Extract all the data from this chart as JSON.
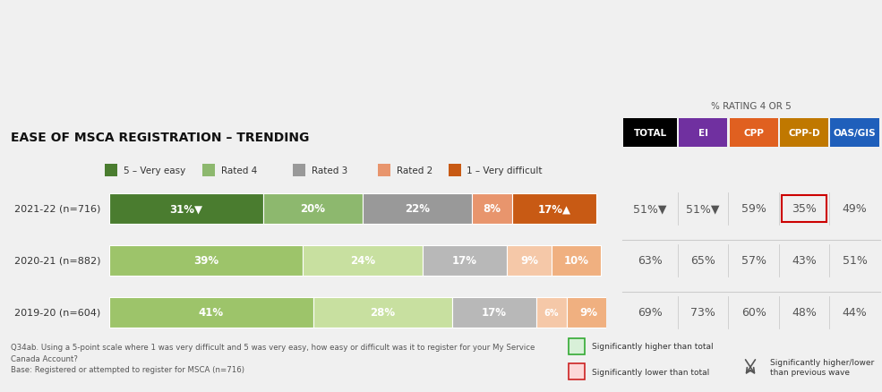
{
  "title": "EASE OF MSCA REGISTRATION – TRENDING",
  "title_fontsize": 10,
  "rows": [
    {
      "label": "2021-22 (n=716)",
      "values": [
        31,
        20,
        22,
        8,
        17
      ],
      "label_texts": [
        "31%▼",
        "20%",
        "22%",
        "8%",
        "17%▲"
      ],
      "total": "51%▼",
      "ei": "51%▼",
      "cpp": "59%",
      "cppd": "35%",
      "oasgis": "49%",
      "cppd_boxed": true,
      "row_bg": "#ebebeb"
    },
    {
      "label": "2020-21 (n=882)",
      "values": [
        39,
        24,
        17,
        9,
        10
      ],
      "label_texts": [
        "39%",
        "24%",
        "17%",
        "9%",
        "10%"
      ],
      "total": "63%",
      "ei": "65%",
      "cpp": "57%",
      "cppd": "43%",
      "oasgis": "51%",
      "cppd_boxed": false,
      "row_bg": "#ffffff"
    },
    {
      "label": "2019-20 (n=604)",
      "values": [
        41,
        28,
        17,
        6,
        9
      ],
      "label_texts": [
        "41%",
        "28%",
        "17%",
        "6%",
        "9%"
      ],
      "total": "69%",
      "ei": "73%",
      "cpp": "60%",
      "cppd": "48%",
      "oasgis": "44%",
      "cppd_boxed": false,
      "row_bg": "#ffffff"
    }
  ],
  "bar_colors_row0": [
    "#4a7c2f",
    "#8db86e",
    "#999999",
    "#e8956d",
    "#c85a14"
  ],
  "bar_colors_row1": [
    "#9dc46a",
    "#c8e0a0",
    "#b8b8b8",
    "#f5c8a8",
    "#f0b080"
  ],
  "bar_colors_row2": [
    "#9dc46a",
    "#c8e0a0",
    "#b8b8b8",
    "#f5c8a8",
    "#f0b080"
  ],
  "legend_items": [
    {
      "label": "5 – Very easy",
      "color": "#4a7c2f"
    },
    {
      "label": "Rated 4",
      "color": "#8db86e"
    },
    {
      "label": "Rated 3",
      "color": "#999999"
    },
    {
      "label": "Rated 2",
      "color": "#e8956d"
    },
    {
      "label": "1 – Very difficult",
      "color": "#c85a14"
    }
  ],
  "table_header_colors": {
    "TOTAL": "#000000",
    "EI": "#7030a0",
    "CPP": "#e06020",
    "CPP-D": "#c07800",
    "OAS/GIS": "#1f5fbb"
  },
  "table_headers": [
    "TOTAL",
    "EI",
    "CPP",
    "CPP-D",
    "OAS/GIS"
  ],
  "rating_label": "% RATING 4 OR 5",
  "footnote_q": "Q34ab. Using a 5-point scale where 1 was very difficult and 5 was very easy, how easy or difficult was it to register for your My Service\nCanada Account?\nBase: Registered or attempted to register for MSCA (n=716)",
  "footnote_sig_high": "Significantly higher than total",
  "footnote_sig_low": "Significantly lower than total",
  "footnote_trend": "Significantly higher/lower\nthan previous wave",
  "bg_color": "#f0f0f0",
  "chart_bg": "#ffffff",
  "divider_color": "#cccccc"
}
